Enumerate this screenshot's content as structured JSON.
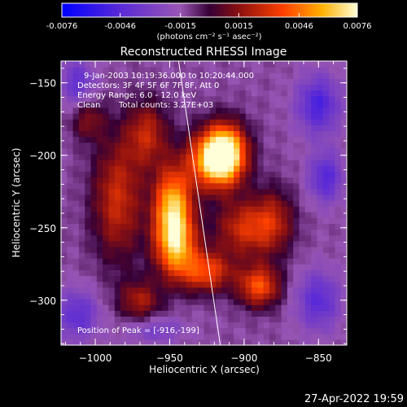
{
  "colorbar": {
    "tick_labels": [
      "-0.0076",
      "-0.0046",
      "-0.0015",
      "0.0015",
      "0.0046",
      "0.0076"
    ],
    "tick_values": [
      -0.0076,
      -0.0046,
      -0.0015,
      0.0015,
      0.0046,
      0.0076
    ],
    "range": [
      -0.0076,
      0.0076
    ],
    "units_label": "(photons cm⁻² s⁻¹ asec⁻²)"
  },
  "chart_data": {
    "type": "heatmap",
    "title": "Reconstructed RHESSI Image",
    "xlabel": "Heliocentric X (arcsec)",
    "ylabel": "Heliocentric Y (arcsec)",
    "xlim": [
      -1023,
      -831
    ],
    "ylim": [
      -331,
      -135
    ],
    "x_ticks": [
      -1000,
      -950,
      -900,
      -850
    ],
    "x_tick_labels": [
      "−1000",
      "−950",
      "−900",
      "−850"
    ],
    "y_ticks": [
      -300,
      -250,
      -200,
      -150
    ],
    "y_tick_labels": [
      "−300",
      "−250",
      "−200",
      "−150"
    ],
    "limb_line": {
      "x": [
        -944,
        -916
      ],
      "y": [
        -135,
        -331
      ]
    },
    "sources": [
      {
        "x": -912,
        "y": -198,
        "peak": 0.0076,
        "sx": 10,
        "sy": 14
      },
      {
        "x": -922,
        "y": -203,
        "peak": 0.0062,
        "sx": 12,
        "sy": 14
      },
      {
        "x": -948,
        "y": -233,
        "peak": 0.0068,
        "sx": 9,
        "sy": 18
      },
      {
        "x": -946,
        "y": -262,
        "peak": 0.0066,
        "sx": 10,
        "sy": 16
      },
      {
        "x": -925,
        "y": -280,
        "peak": 0.0048,
        "sx": 12,
        "sy": 10
      },
      {
        "x": -890,
        "y": -290,
        "peak": 0.0052,
        "sx": 10,
        "sy": 10
      },
      {
        "x": -985,
        "y": -230,
        "peak": 0.004,
        "sx": 12,
        "sy": 30
      },
      {
        "x": -900,
        "y": -250,
        "peak": 0.004,
        "sx": 14,
        "sy": 14
      },
      {
        "x": -965,
        "y": -185,
        "peak": 0.0036,
        "sx": 10,
        "sy": 16
      },
      {
        "x": -970,
        "y": -300,
        "peak": 0.0032,
        "sx": 10,
        "sy": 10
      },
      {
        "x": -880,
        "y": -245,
        "peak": 0.003,
        "sx": 10,
        "sy": 16
      },
      {
        "x": -1005,
        "y": -175,
        "peak": 0.0026,
        "sx": 8,
        "sy": 10
      },
      {
        "x": -1012,
        "y": -150,
        "peak": -0.0028,
        "sx": 8,
        "sy": 12
      },
      {
        "x": -850,
        "y": -165,
        "peak": -0.0038,
        "sx": 10,
        "sy": 14
      },
      {
        "x": -845,
        "y": -215,
        "peak": -0.0034,
        "sx": 8,
        "sy": 12
      },
      {
        "x": -850,
        "y": -300,
        "peak": -0.0032,
        "sx": 10,
        "sy": 14
      },
      {
        "x": -1012,
        "y": -310,
        "peak": -0.003,
        "sx": 10,
        "sy": 12
      },
      {
        "x": -960,
        "y": -320,
        "peak": -0.002,
        "sx": 14,
        "sy": 6
      }
    ]
  },
  "annotations": {
    "line1": "9-Jan-2003 10:19:36.000 to 10:20:44.000",
    "line2": "Detectors: 3F 4F 5F 6F 7F 8F, Att 0",
    "line3": "Energy Range: 6.0 - 12.0 keV",
    "line4_a": "Clean",
    "line4_b": "Total counts: 3.27E+03",
    "peak_position": "Position of Peak = [-916,-199]"
  },
  "footer": {
    "date": "27-Apr-2022 19:59"
  }
}
